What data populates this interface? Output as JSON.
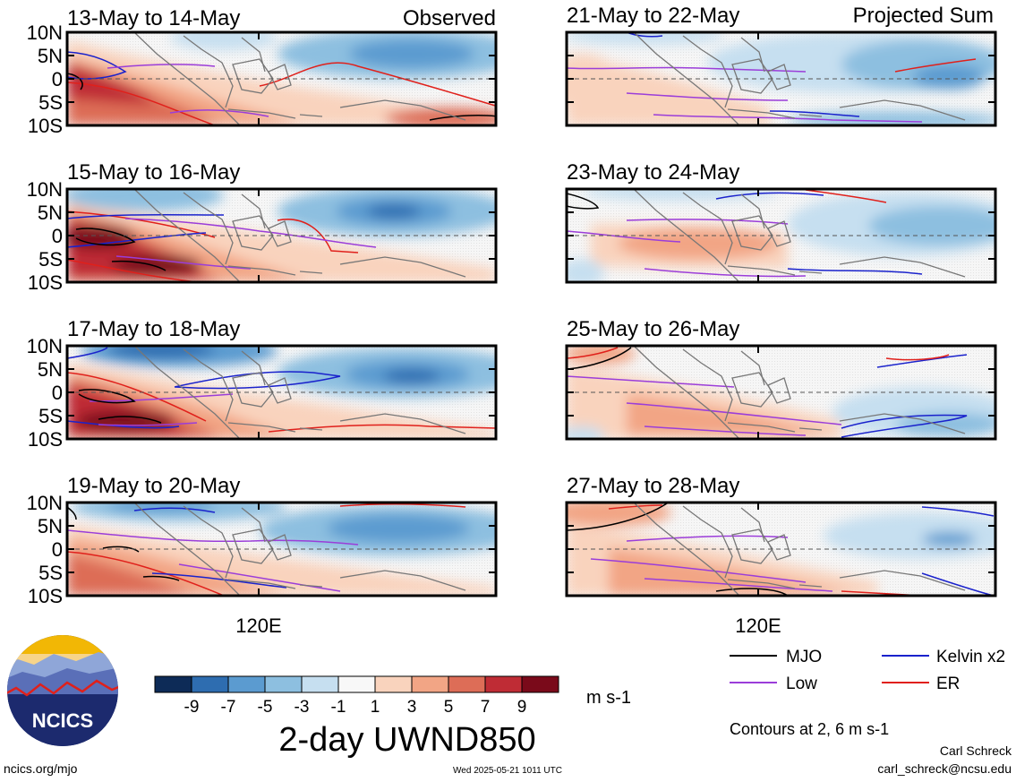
{
  "chart_data": {
    "type": "heatmap",
    "variable_title": "2-day UWND850",
    "units": "m s-1",
    "contour_note": "Contours at 2, 6 m s-1",
    "ytick_labels": [
      "10N",
      "5N",
      "0",
      "5S",
      "10S"
    ],
    "xtick_label": "120E",
    "color_levels": [
      {
        "label": "-9",
        "color": "#0d2b57"
      },
      {
        "label": "-7",
        "color": "#2e6db0"
      },
      {
        "label": "-5",
        "color": "#5b9bd0"
      },
      {
        "label": "-3",
        "color": "#8dbfe0"
      },
      {
        "label": "-1",
        "color": "#c6dff0"
      },
      {
        "label": "1",
        "color": "#f8f8f8"
      },
      {
        "label": "3",
        "color": "#f9d3bd"
      },
      {
        "label": "5",
        "color": "#f2a585"
      },
      {
        "label": "7",
        "color": "#dd6d57"
      },
      {
        "label": "9",
        "color": "#bf2c35"
      },
      {
        "label": "",
        "color": "#7a0a1a"
      }
    ],
    "legend": [
      {
        "label": "MJO",
        "color": "#000000"
      },
      {
        "label": "Kelvin x2",
        "color": "#1a22cc"
      },
      {
        "label": "Low",
        "color": "#9b3dd9"
      },
      {
        "label": "ER",
        "color": "#e0201b"
      }
    ],
    "panels": [
      {
        "title": "13-May to 14-May",
        "tag": "Observed",
        "column": "observed"
      },
      {
        "title": "15-May to 16-May",
        "tag": "",
        "column": "observed"
      },
      {
        "title": "17-May to 18-May",
        "tag": "",
        "column": "observed"
      },
      {
        "title": "19-May to 20-May",
        "tag": "",
        "column": "observed"
      },
      {
        "title": "21-May to 22-May",
        "tag": "Projected Sum",
        "column": "projected"
      },
      {
        "title": "23-May to 24-May",
        "tag": "",
        "column": "projected"
      },
      {
        "title": "25-May to 26-May",
        "tag": "",
        "column": "projected"
      },
      {
        "title": "27-May to 28-May",
        "tag": "",
        "column": "projected"
      }
    ]
  },
  "logo": {
    "text": "NCICS"
  },
  "footer": {
    "url": "ncics.org/mjo",
    "timestamp": "Wed 2025-05-21 1011 UTC",
    "author": "Carl Schreck",
    "email": "carl_schreck@ncsu.edu"
  }
}
